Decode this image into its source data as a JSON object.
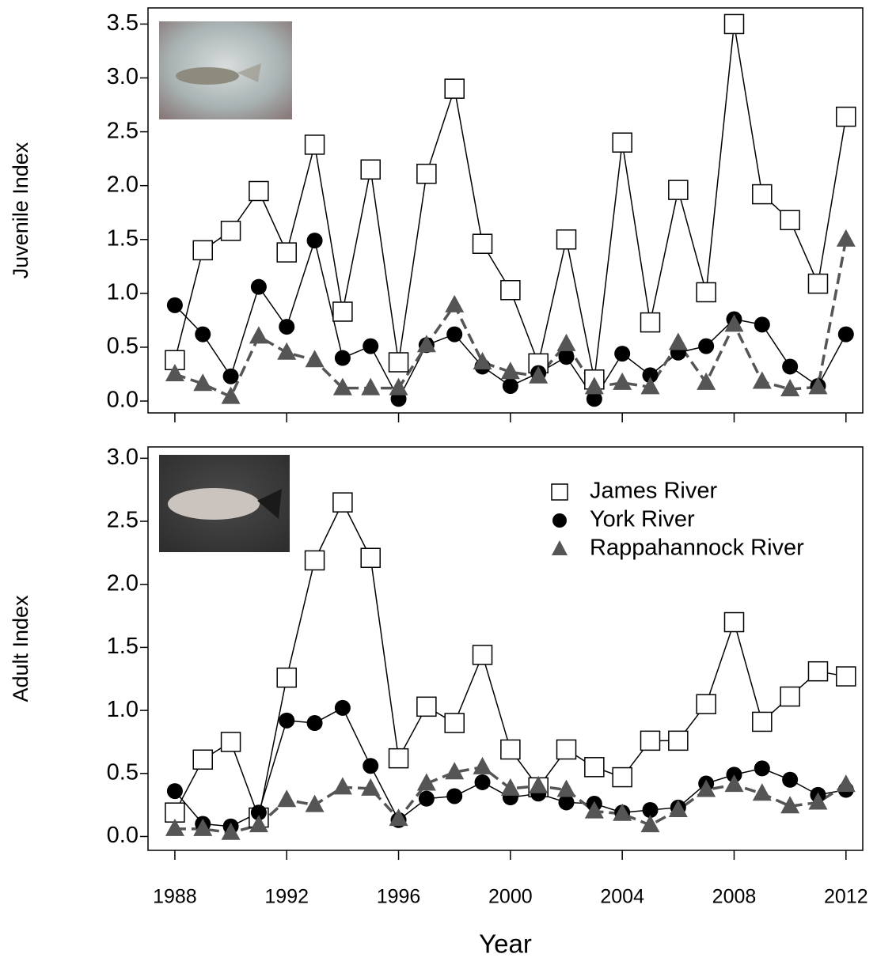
{
  "chart_data": [
    {
      "type": "line",
      "ylabel": "Juvenile Index",
      "x": [
        1988,
        1989,
        1990,
        1991,
        1992,
        1993,
        1994,
        1995,
        1996,
        1997,
        1998,
        1999,
        2000,
        2001,
        2002,
        2003,
        2004,
        2005,
        2006,
        2007,
        2008,
        2009,
        2010,
        2011,
        2012
      ],
      "xlim": [
        1987.04,
        2012.6
      ],
      "xticks": [
        1988,
        1992,
        1996,
        2000,
        2004,
        2008,
        2012
      ],
      "show_xtick_labels": false,
      "ylim": [
        -0.11,
        3.65
      ],
      "yticks": [
        {
          "value": 0,
          "label": "0.0"
        },
        0.5,
        {
          "value": 1,
          "label": "1.0"
        },
        1.5,
        {
          "value": 2,
          "label": "2.0"
        },
        2.5,
        {
          "value": 3,
          "label": "3.0"
        },
        3.5
      ],
      "series": [
        {
          "name": "James River",
          "color": "#000000",
          "marker": "open-square",
          "dashed": false,
          "values": [
            0.38,
            1.4,
            1.58,
            1.95,
            1.38,
            2.38,
            0.83,
            2.15,
            0.36,
            2.11,
            2.9,
            1.46,
            1.03,
            0.35,
            1.5,
            0.2,
            2.4,
            0.73,
            1.96,
            1.01,
            3.5,
            1.92,
            1.68,
            1.09,
            2.64
          ]
        },
        {
          "name": "York River",
          "color": "#000000",
          "marker": "circle",
          "dashed": false,
          "values": [
            0.89,
            0.62,
            0.23,
            1.06,
            0.69,
            1.49,
            0.4,
            0.51,
            0.02,
            0.52,
            0.62,
            0.32,
            0.14,
            0.26,
            0.41,
            0.02,
            0.44,
            0.24,
            0.45,
            0.51,
            0.76,
            0.71,
            0.32,
            0.14,
            0.62
          ]
        },
        {
          "name": "Rappahannock River",
          "color": "#555555",
          "marker": "triangle",
          "dashed": true,
          "values": [
            0.25,
            0.16,
            0.04,
            0.6,
            0.45,
            0.38,
            0.12,
            0.12,
            0.12,
            0.52,
            0.89,
            0.36,
            0.27,
            0.23,
            0.53,
            0.13,
            0.17,
            0.13,
            0.54,
            0.17,
            0.71,
            0.18,
            0.11,
            0.13,
            1.5
          ]
        }
      ]
    },
    {
      "type": "line",
      "ylabel": "Adult Index",
      "xlabel": "Year",
      "x": [
        1988,
        1989,
        1990,
        1991,
        1992,
        1993,
        1994,
        1995,
        1996,
        1997,
        1998,
        1999,
        2000,
        2001,
        2002,
        2003,
        2004,
        2005,
        2006,
        2007,
        2008,
        2009,
        2010,
        2011,
        2012
      ],
      "xlim": [
        1987.04,
        2012.6
      ],
      "xticks": [
        1988,
        1992,
        1996,
        2000,
        2004,
        2008,
        2012
      ],
      "show_xtick_labels": true,
      "ylim": [
        -0.11,
        3.09
      ],
      "yticks": [
        {
          "value": 0,
          "label": "0.0"
        },
        0.5,
        {
          "value": 1,
          "label": "1.0"
        },
        1.5,
        {
          "value": 2,
          "label": "2.0"
        },
        2.5,
        {
          "value": 3,
          "label": "3.0"
        }
      ],
      "legend": "top-right",
      "series": [
        {
          "name": "James River",
          "color": "#000000",
          "marker": "open-square",
          "dashed": false,
          "values": [
            0.19,
            0.61,
            0.75,
            0.15,
            1.26,
            2.19,
            2.65,
            2.21,
            0.62,
            1.03,
            0.9,
            1.44,
            0.69,
            0.39,
            0.69,
            0.55,
            0.47,
            0.76,
            0.76,
            1.05,
            1.7,
            0.91,
            1.11,
            1.31,
            1.27
          ]
        },
        {
          "name": "York River",
          "color": "#000000",
          "marker": "circle",
          "dashed": false,
          "values": [
            0.36,
            0.1,
            0.08,
            0.19,
            0.92,
            0.9,
            1.02,
            0.56,
            0.13,
            0.3,
            0.32,
            0.43,
            0.31,
            0.34,
            0.27,
            0.26,
            0.19,
            0.21,
            0.23,
            0.42,
            0.49,
            0.54,
            0.45,
            0.33,
            0.37
          ]
        },
        {
          "name": "Rappahannock River",
          "color": "#555555",
          "marker": "triangle",
          "dashed": true,
          "values": [
            0.06,
            0.06,
            0.03,
            0.09,
            0.29,
            0.25,
            0.39,
            0.38,
            0.14,
            0.42,
            0.51,
            0.55,
            0.38,
            0.4,
            0.37,
            0.2,
            0.18,
            0.09,
            0.21,
            0.37,
            0.41,
            0.34,
            0.24,
            0.27,
            0.41
          ]
        }
      ]
    }
  ]
}
